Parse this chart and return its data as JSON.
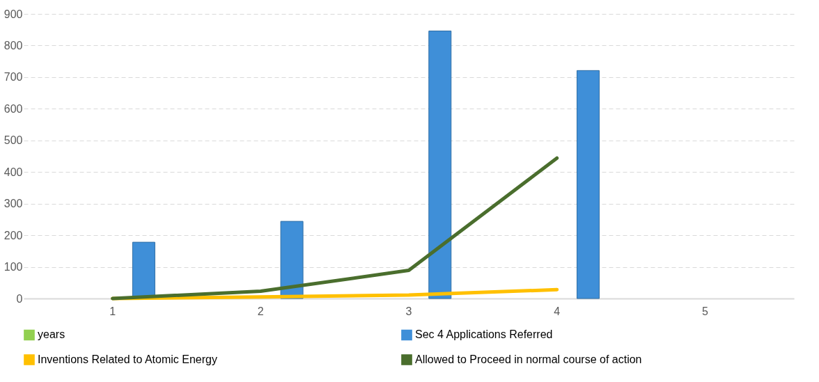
{
  "chart_data": {
    "type": "bar",
    "categories": [
      "1",
      "2",
      "3",
      "4",
      "5"
    ],
    "series": [
      {
        "name": "years",
        "color": "#92d050",
        "values": [
          null,
          null,
          null,
          null,
          null
        ]
      },
      {
        "name": "Sec 4 Applications Referred",
        "color": "#3f8fd8",
        "values": [
          178,
          244,
          846,
          721,
          null
        ]
      },
      {
        "name": "Inventions Related to Atomic Energy",
        "type": "line",
        "color": "#ffc000",
        "values": [
          0,
          5,
          11,
          28,
          null
        ]
      },
      {
        "name": "Allowed to Proceed in normal course of action",
        "type": "line",
        "color": "#4a6e2d",
        "values": [
          0,
          23,
          89,
          444,
          null
        ]
      }
    ],
    "ylim": [
      0,
      900
    ],
    "yticks": [
      0,
      100,
      200,
      300,
      400,
      500,
      600,
      700,
      800,
      900
    ],
    "grid": "y",
    "legend": "bottom",
    "line_style": "solid",
    "marker": "none"
  }
}
